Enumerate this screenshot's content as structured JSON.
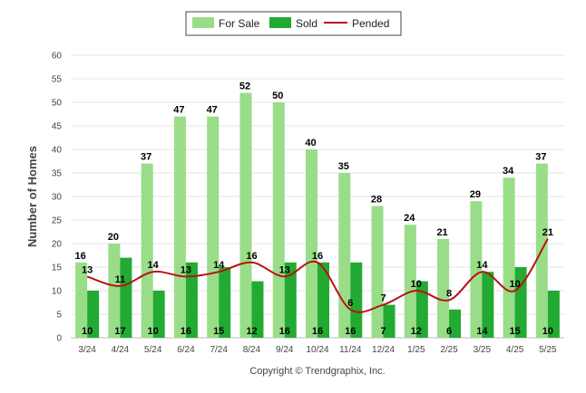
{
  "chart_data": {
    "type": "bar",
    "ylabel": "Number of Homes",
    "ylim": [
      0,
      60
    ],
    "yticks": [
      0,
      5,
      10,
      15,
      20,
      25,
      30,
      35,
      40,
      45,
      50,
      55,
      60
    ],
    "categories": [
      "3/24",
      "4/24",
      "5/24",
      "6/24",
      "7/24",
      "8/24",
      "9/24",
      "10/24",
      "11/24",
      "12/24",
      "1/25",
      "2/25",
      "3/25",
      "4/25",
      "5/25"
    ],
    "series": [
      {
        "name": "For Sale",
        "kind": "bar",
        "color": "#99dd88",
        "values": [
          16,
          20,
          37,
          47,
          47,
          52,
          50,
          40,
          35,
          28,
          24,
          21,
          29,
          34,
          37
        ]
      },
      {
        "name": "Sold",
        "kind": "bar",
        "color": "#22aa33",
        "values": [
          10,
          17,
          10,
          16,
          15,
          12,
          16,
          16,
          16,
          7,
          12,
          6,
          14,
          15,
          10
        ]
      },
      {
        "name": "Pended",
        "kind": "line",
        "color": "#bb1111",
        "values": [
          13,
          11,
          14,
          13,
          14,
          16,
          13,
          16,
          6,
          7,
          10,
          8,
          14,
          10,
          21
        ]
      }
    ],
    "legend_position": "top-center",
    "grid": true
  },
  "footer": {
    "copyright": "Copyright © Trendgraphix, Inc."
  }
}
